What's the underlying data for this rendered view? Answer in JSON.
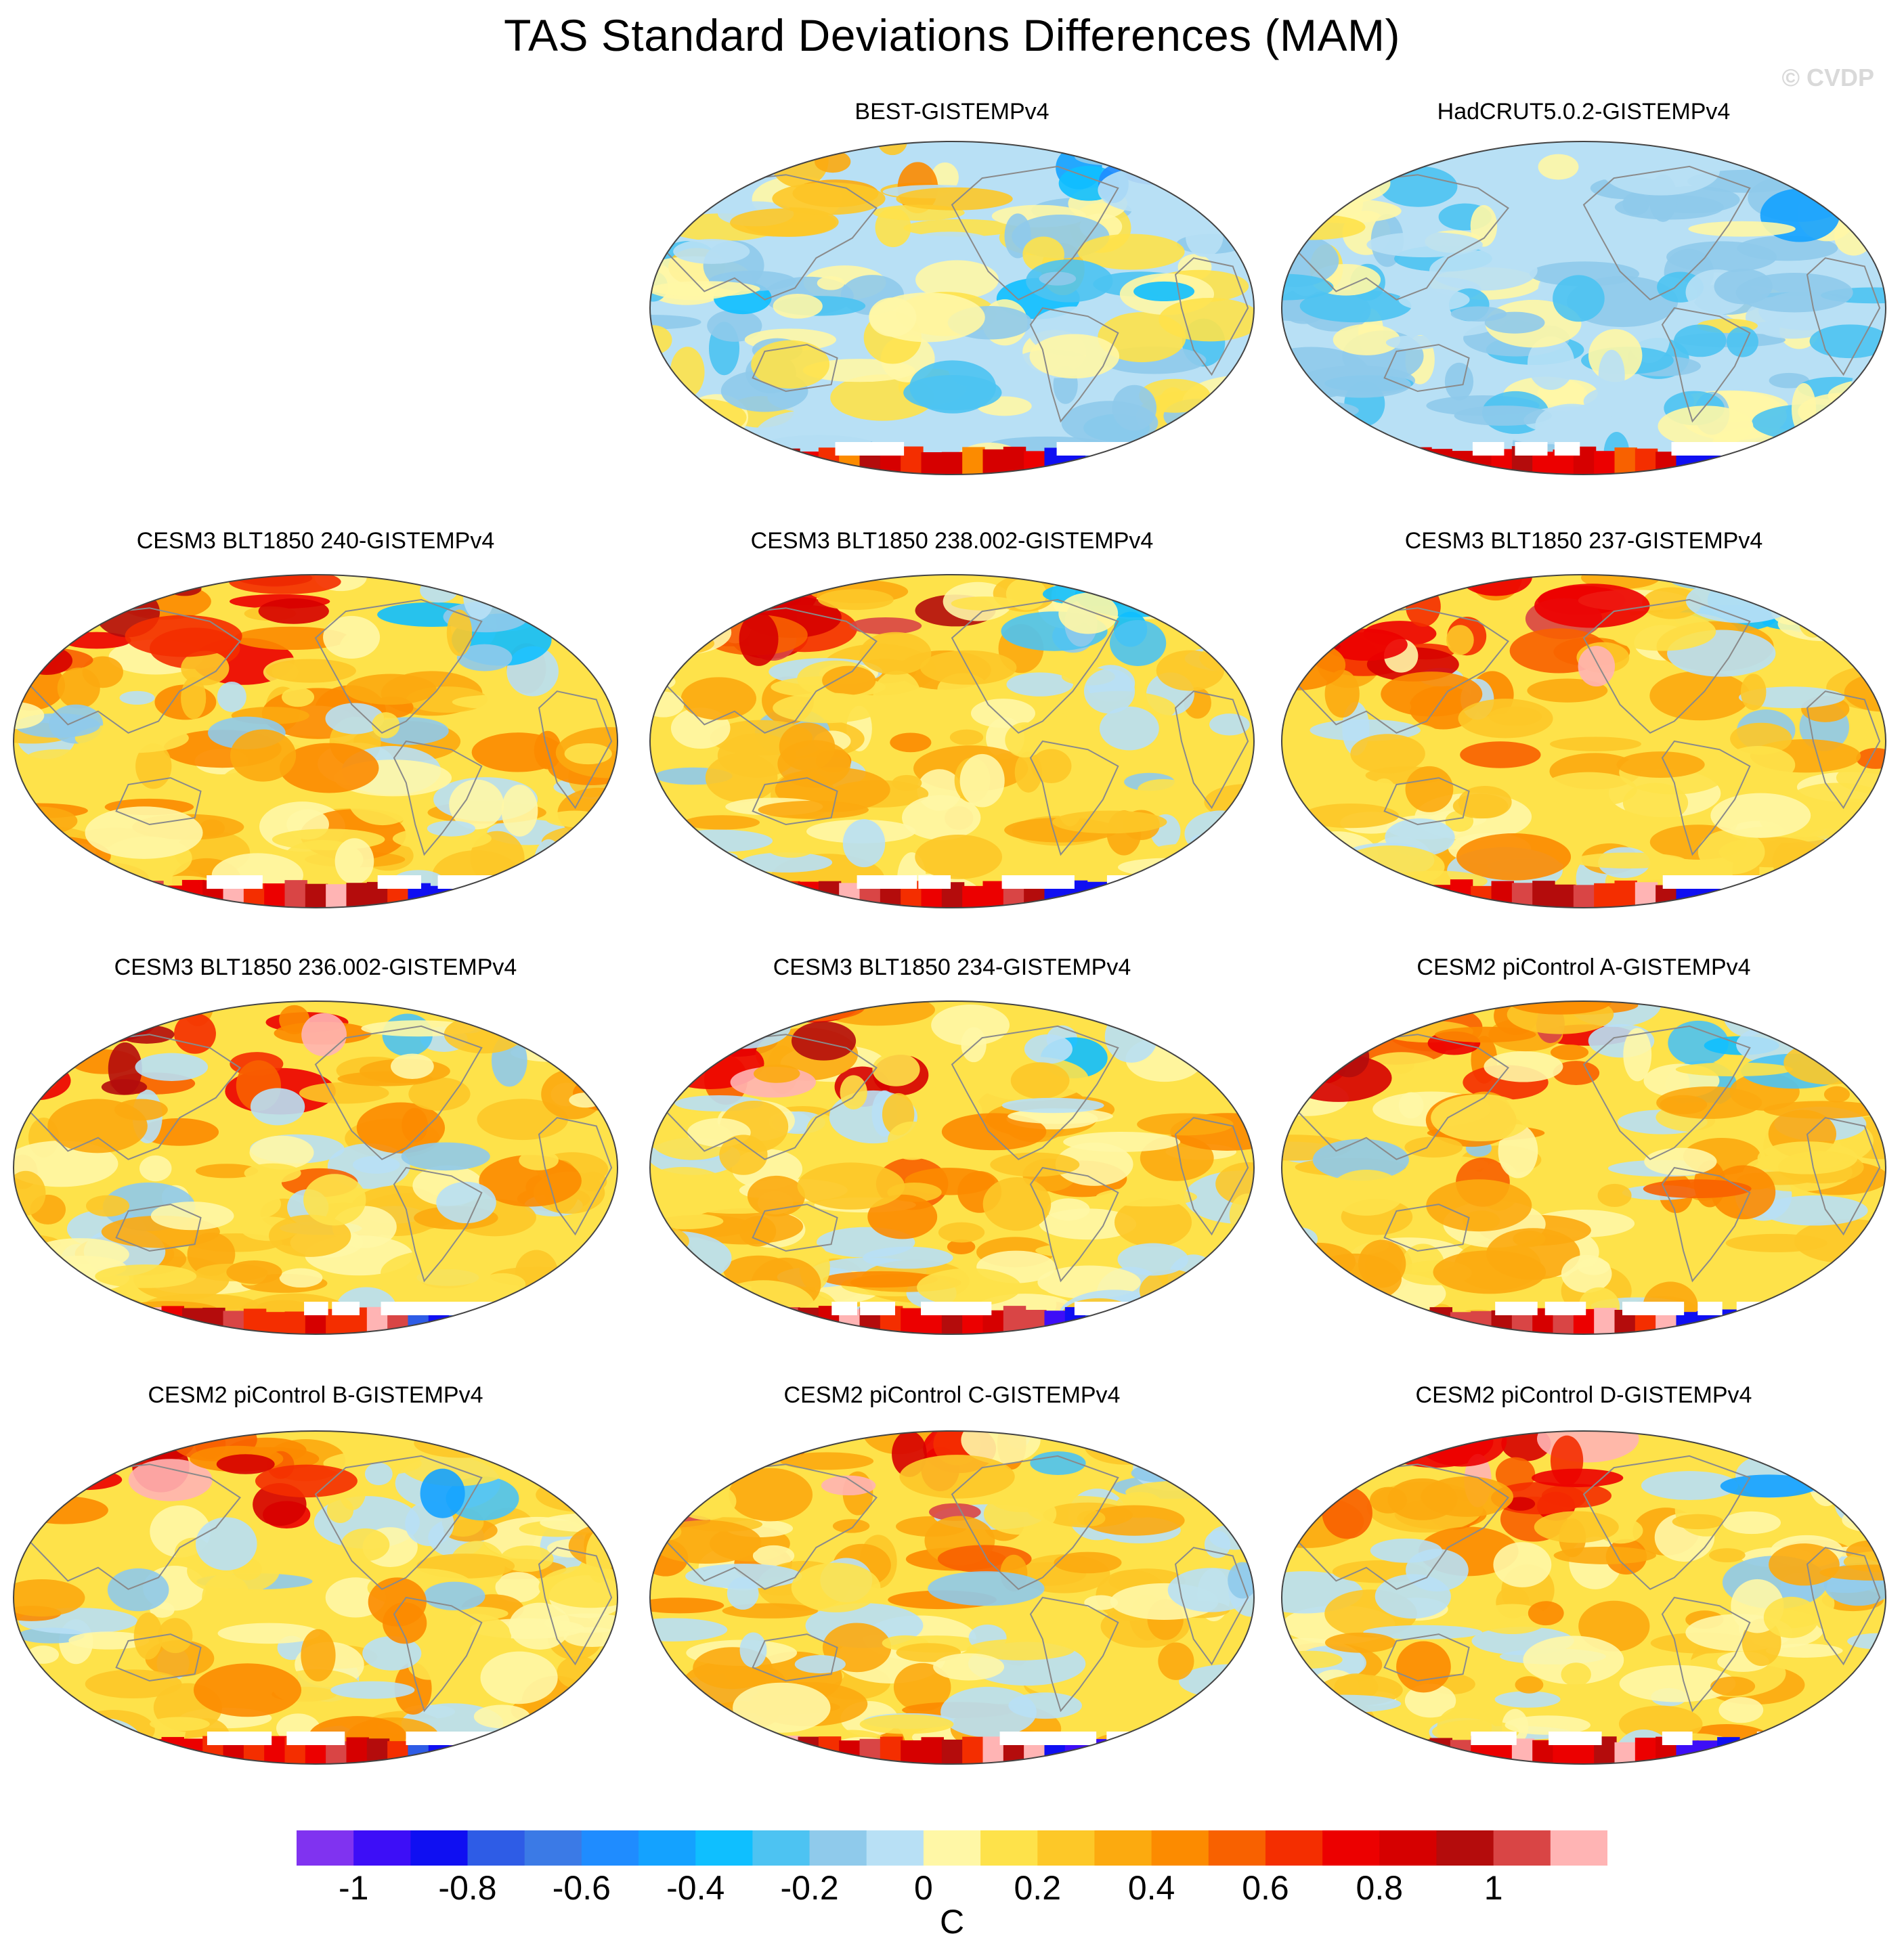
{
  "title": "TAS Standard Deviations Differences (MAM)",
  "copyright": "© CVDP",
  "colors": {
    "bins": [
      "#8033f0",
      "#3d0ef7",
      "#0f0ff2",
      "#2e5ce6",
      "#3b7ae6",
      "#1f8cff",
      "#14a2ff",
      "#0fbfff",
      "#4dc3f2",
      "#8fcaeb",
      "#b8e0f5",
      "#fff7a6",
      "#fee24a",
      "#fdc828",
      "#fcaa0f",
      "#fc8b00",
      "#f86100",
      "#f42e00",
      "#ec0000",
      "#d60000",
      "#b40c0c",
      "#d94545",
      "#ffb4b4"
    ],
    "land_outline": "#8a8a8a",
    "missing": "#ffffff"
  },
  "chart_data": [
    {
      "id": "best",
      "type": "heatmap",
      "title": "BEST-GISTEMPv4",
      "col": 1,
      "row": 0,
      "style": "obs1"
    },
    {
      "id": "hadcrut",
      "type": "heatmap",
      "title": "HadCRUT5.0.2-GISTEMPv4",
      "col": 2,
      "row": 0,
      "style": "obs2"
    },
    {
      "id": "cesm3-240",
      "type": "heatmap",
      "title": "CESM3 BLT1850 240-GISTEMPv4",
      "col": 0,
      "row": 1,
      "style": "model"
    },
    {
      "id": "cesm3-238",
      "type": "heatmap",
      "title": "CESM3 BLT1850 238.002-GISTEMPv4",
      "col": 1,
      "row": 1,
      "style": "model"
    },
    {
      "id": "cesm3-237",
      "type": "heatmap",
      "title": "CESM3 BLT1850 237-GISTEMPv4",
      "col": 2,
      "row": 1,
      "style": "model"
    },
    {
      "id": "cesm3-236",
      "type": "heatmap",
      "title": "CESM3 BLT1850 236.002-GISTEMPv4",
      "col": 0,
      "row": 2,
      "style": "model"
    },
    {
      "id": "cesm3-234",
      "type": "heatmap",
      "title": "CESM3 BLT1850 234-GISTEMPv4",
      "col": 1,
      "row": 2,
      "style": "model"
    },
    {
      "id": "cesm2-a",
      "type": "heatmap",
      "title": "CESM2 piControl A-GISTEMPv4",
      "col": 2,
      "row": 2,
      "style": "model"
    },
    {
      "id": "cesm2-b",
      "type": "heatmap",
      "title": "CESM2 piControl B-GISTEMPv4",
      "col": 0,
      "row": 3,
      "style": "model"
    },
    {
      "id": "cesm2-c",
      "type": "heatmap",
      "title": "CESM2 piControl C-GISTEMPv4",
      "col": 1,
      "row": 3,
      "style": "model"
    },
    {
      "id": "cesm2-d",
      "type": "heatmap",
      "title": "CESM2 piControl D-GISTEMPv4",
      "col": 2,
      "row": 3,
      "style": "model"
    }
  ],
  "colorbar": {
    "levels": [
      -1.1,
      -1.0,
      -0.9,
      -0.8,
      -0.7,
      -0.6,
      -0.5,
      -0.4,
      -0.3,
      -0.2,
      -0.1,
      0,
      0.1,
      0.2,
      0.3,
      0.4,
      0.5,
      0.6,
      0.7,
      0.8,
      0.9,
      1.0,
      1.1
    ],
    "tick_labels": [
      "-1",
      "-0.8",
      "-0.6",
      "-0.4",
      "-0.2",
      "0",
      "0.2",
      "0.4",
      "0.6",
      "0.8",
      "1"
    ],
    "tick_values": [
      -1.0,
      -0.8,
      -0.6,
      -0.4,
      -0.2,
      0,
      0.2,
      0.4,
      0.6,
      0.8,
      1.0
    ],
    "units": "C"
  }
}
